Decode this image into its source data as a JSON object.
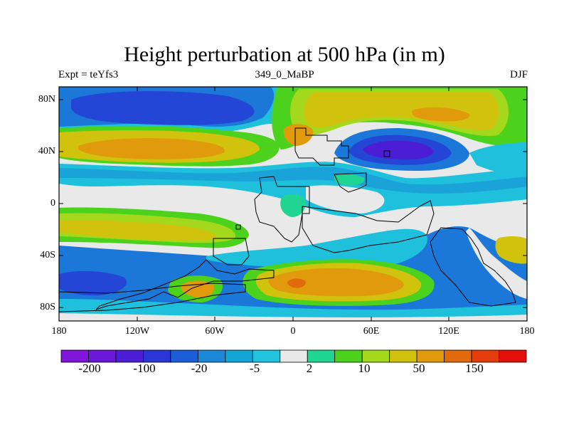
{
  "figure": {
    "title": "Height perturbation at 500 hPa (in m)",
    "left_label": "Expt = teYfs3",
    "center_label": "349_0_MaBP",
    "right_label": "DJF"
  },
  "axes": {
    "lat_ticks": [
      "80N",
      "40N",
      "0",
      "40S",
      "80S"
    ],
    "lon_ticks": [
      "180",
      "120W",
      "60W",
      "0",
      "60E",
      "120E",
      "180"
    ]
  },
  "colorbar": {
    "colors": [
      "#7f16d9",
      "#6a18d9",
      "#4b1ed5",
      "#2a36d6",
      "#1b5ed8",
      "#1b88d8",
      "#14a5d8",
      "#22c3dd",
      "#e9e9e9",
      "#20d492",
      "#4cd21c",
      "#a4d81c",
      "#d1c20d",
      "#e19a0c",
      "#e16a0c",
      "#e53c0c",
      "#e3100c"
    ],
    "labels": [
      "-200",
      "-100",
      "-20",
      "-5",
      "2",
      "10",
      "50",
      "150"
    ]
  },
  "field_colors": {
    "neutral": "#e9e9e9",
    "cyan": "#1ec0dc",
    "lightblue": "#1aa3d8",
    "blue": "#1b78d8",
    "darkblue": "#2446d6",
    "indigo": "#4b1ed5",
    "green": "#20d492",
    "lime": "#4cd21c",
    "yellowgreen": "#a4d81c",
    "yellow": "#d1c20d",
    "orange": "#e19a0c",
    "outline": "#000000"
  }
}
